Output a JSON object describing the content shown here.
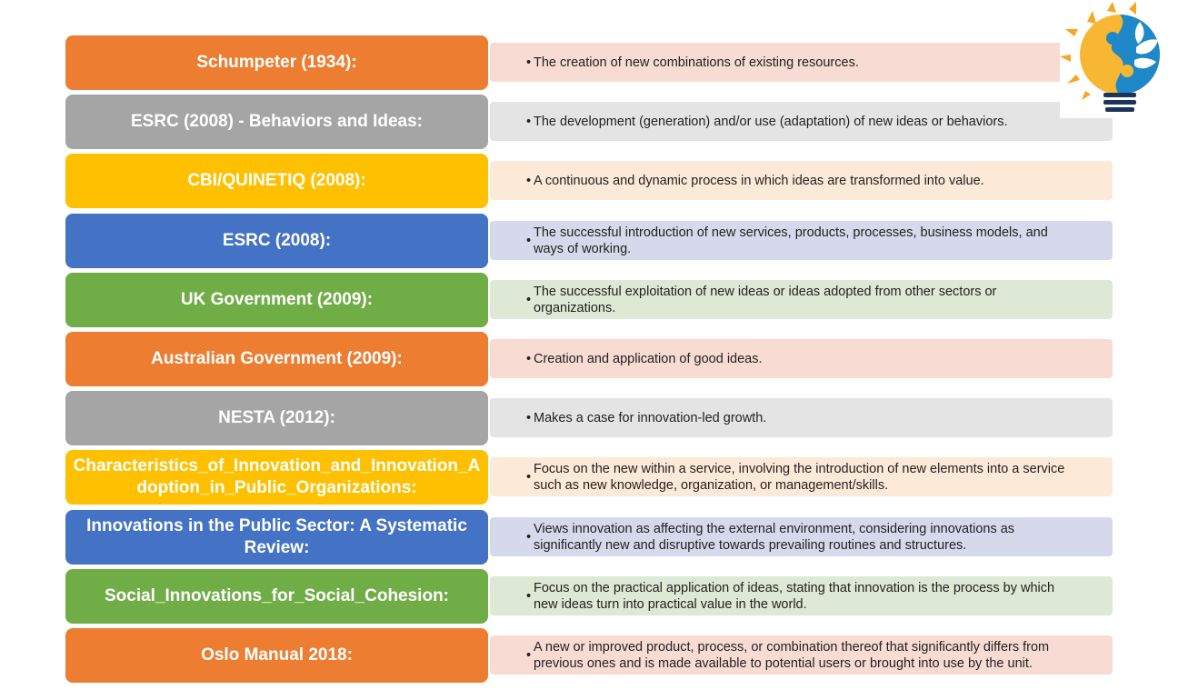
{
  "rows": [
    {
      "label": "Schumpeter (1934):",
      "definition": "The creation of new combinations of existing resources.",
      "color": "#ED7D31",
      "bg": "#F8DBD3"
    },
    {
      "label": "ESRC (2008) - Behaviors and Ideas:",
      "definition": "The development (generation) and/or use (adaptation) of new ideas or behaviors.",
      "color": "#A5A5A5",
      "bg": "#E4E4E4"
    },
    {
      "label": "CBI/QUINETIQ (2008):",
      "definition": "A continuous and dynamic process in which ideas are transformed into value.",
      "color": "#FFC000",
      "bg": "#FDE9D7"
    },
    {
      "label": "ESRC (2008):",
      "definition": "The successful introduction of new services, products, processes, business models, and ways of working.",
      "color": "#4472C4",
      "bg": "#D5D9EB"
    },
    {
      "label": "UK Government (2009):",
      "definition": "The successful exploitation of new ideas or ideas adopted from other sectors or organizations.",
      "color": "#70AD47",
      "bg": "#DDE8D5"
    },
    {
      "label": "Australian Government (2009):",
      "definition": "Creation and application of good ideas.",
      "color": "#ED7D31",
      "bg": "#F8DBD3"
    },
    {
      "label": "NESTA (2012):",
      "definition": "Makes a case for innovation-led growth.",
      "color": "#A5A5A5",
      "bg": "#E4E4E4"
    },
    {
      "label": "Characteristics_of_Innovation_and_Innovation_Adoption_in_Public_Organizations:",
      "definition": "Focus on the new within a service, involving the introduction of new elements into a service such as new knowledge, organization, or management/skills.",
      "color": "#FFC000",
      "bg": "#FDE9D7"
    },
    {
      "label": "Innovations in the Public Sector: A Systematic Review:",
      "definition": "Views innovation as affecting the external environment, considering innovations as significantly new and disruptive towards prevailing routines and structures.",
      "color": "#4472C4",
      "bg": "#D5D9EB"
    },
    {
      "label": "Social_Innovations_for_Social_Cohesion:",
      "definition": "Focus on the practical application of ideas, stating that innovation is the process by which new ideas turn into practical value in the world.",
      "color": "#70AD47",
      "bg": "#DDE8D5"
    },
    {
      "label": "Oslo Manual 2018:",
      "definition": "A new or improved product, process, or combination thereof that significantly differs from previous ones and is made available to potential users or brought into use by the unit.",
      "color": "#ED7D31",
      "bg": "#F8DBD3"
    }
  ],
  "logo": {
    "icon": "lightbulb-sun-leaf-icon"
  }
}
